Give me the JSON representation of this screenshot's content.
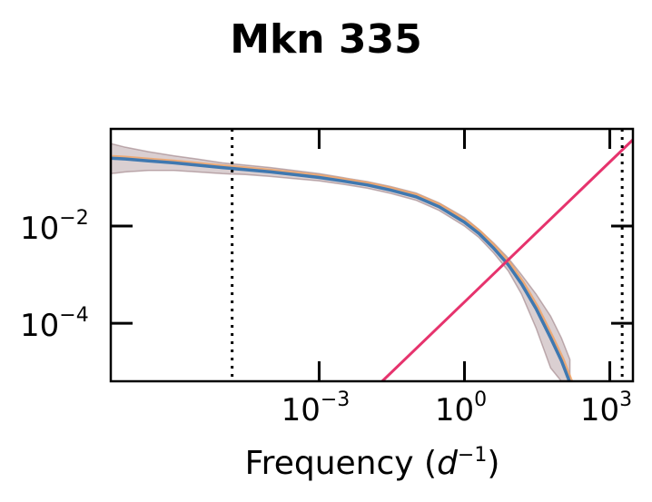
{
  "chart_data": {
    "type": "line",
    "title": "Mkn 335",
    "xlabel": {
      "main": "Frequency (",
      "var": "d",
      "sup": "−1",
      "end": ")"
    },
    "ylabel": "",
    "x_scale": "log",
    "y_scale": "log",
    "xlim": [
      5e-08,
      3000
    ],
    "ylim": [
      6.4e-06,
      1.0
    ],
    "x_ticks": [
      {
        "value": 0.001,
        "base": "10",
        "exp": "−3"
      },
      {
        "value": 1,
        "base": "10",
        "exp": "0"
      },
      {
        "value": 1000,
        "base": "10",
        "exp": "3"
      }
    ],
    "y_ticks": [
      {
        "value": 0.01,
        "base": "10",
        "exp": "−2"
      },
      {
        "value": 0.0001,
        "base": "10",
        "exp": "−4"
      }
    ],
    "vlines": [
      1.6e-05,
      1800
    ],
    "grid": false,
    "legend": "none",
    "colors": {
      "median": "#3f78b0",
      "median_alt": "#f0a060",
      "band": "#8c6a70",
      "noise": "#e6336d",
      "vline": "#000000"
    },
    "series": [
      {
        "x": [
          5e-08,
          1e-07,
          3e-07,
          1e-06,
          3e-06,
          1e-05,
          3e-05,
          0.0001,
          0.0003,
          0.001,
          0.003,
          0.01,
          0.03,
          0.1,
          0.3,
          1,
          2,
          4,
          8,
          15,
          30,
          60,
          100,
          150
        ],
        "y": [
          0.25,
          0.24,
          0.22,
          0.2,
          0.18,
          0.16,
          0.145,
          0.13,
          0.115,
          0.1,
          0.085,
          0.07,
          0.055,
          0.04,
          0.025,
          0.012,
          0.007,
          0.0035,
          0.0016,
          0.00065,
          0.0002,
          5e-05,
          1.7e-05,
          6e-06
        ],
        "lower": [
          0.12,
          0.13,
          0.14,
          0.14,
          0.13,
          0.12,
          0.115,
          0.105,
          0.095,
          0.085,
          0.073,
          0.06,
          0.047,
          0.034,
          0.021,
          0.01,
          0.0058,
          0.0028,
          0.0012,
          0.0004,
          8e-05,
          1.2e-05,
          6.4e-06,
          6.4e-06
        ],
        "upper": [
          0.5,
          0.42,
          0.34,
          0.28,
          0.24,
          0.2,
          0.18,
          0.16,
          0.14,
          0.12,
          0.1,
          0.082,
          0.065,
          0.048,
          0.03,
          0.015,
          0.0085,
          0.0045,
          0.0022,
          0.001,
          0.0004,
          0.00014,
          5e-05,
          1.8e-05
        ]
      },
      {
        "x": [
          0.02,
          3000
        ],
        "y": [
          6.4e-06,
          0.6
        ]
      }
    ]
  }
}
